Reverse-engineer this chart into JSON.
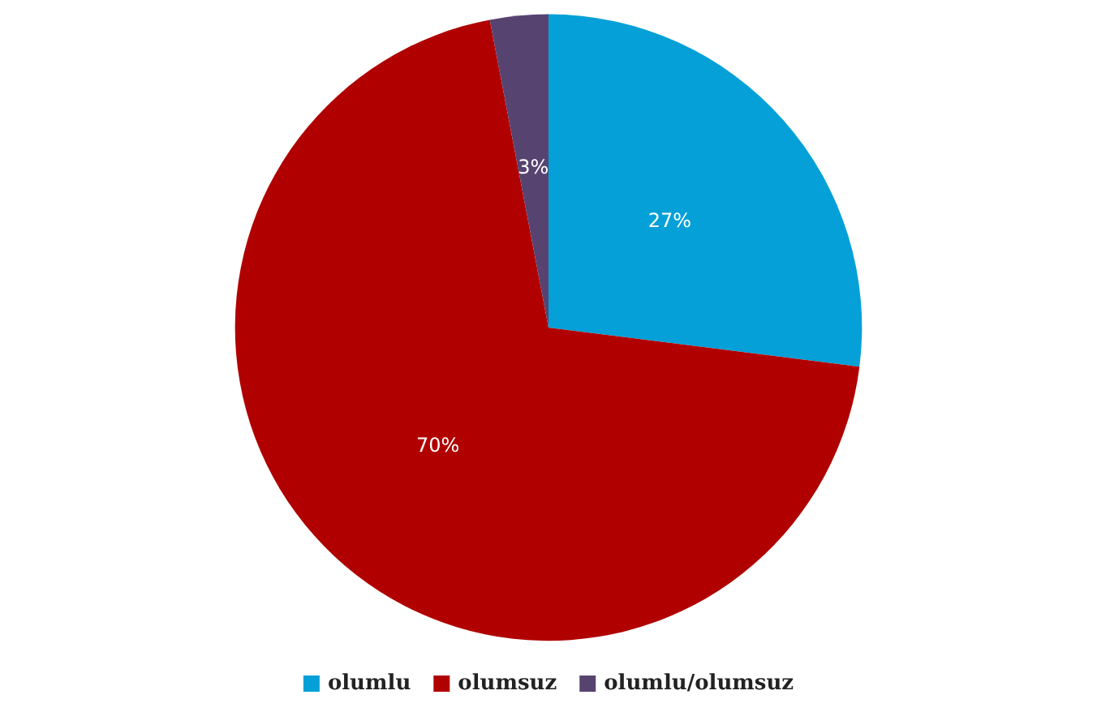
{
  "chart_data": {
    "type": "pie",
    "categories": [
      "olumlu",
      "olumsuz",
      "olumlu/olumsuz"
    ],
    "values": [
      27,
      70,
      3
    ],
    "colors": [
      "#05a0d8",
      "#b00000",
      "#574370"
    ],
    "value_labels": [
      "27%",
      "70%",
      "3%"
    ],
    "legend": "bottom"
  }
}
